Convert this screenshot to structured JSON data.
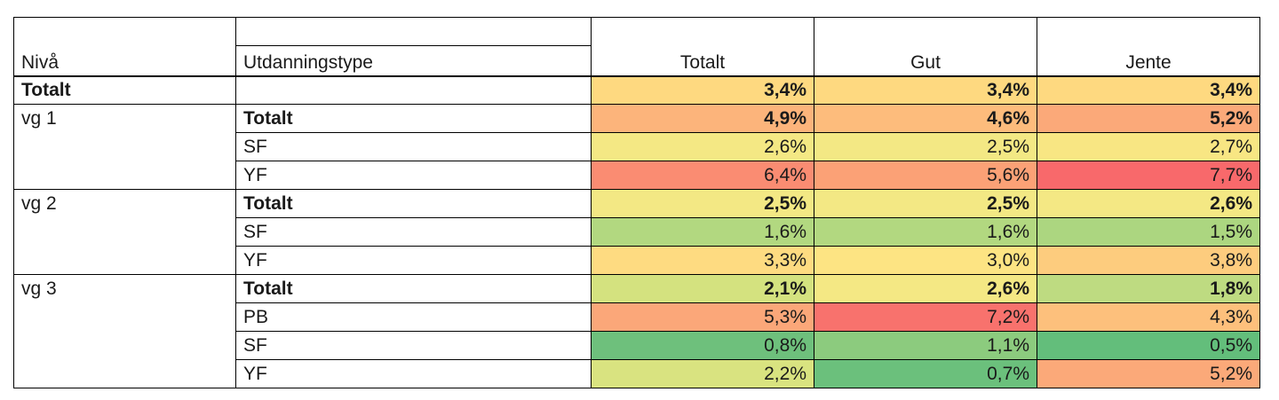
{
  "chart_data": {
    "type": "table",
    "colors": {
      "green_dark": "#63be7b",
      "green_mid": "#8ccb7e",
      "green_light": "#b2d880",
      "yellow_green": "#d4e27f",
      "yellow": "#f4e884",
      "yellow_orange": "#fed980",
      "orange_light": "#fdc47d",
      "orange": "#fcae7a",
      "orange_red": "#fb9a76",
      "red_light": "#f98370",
      "red": "#f8696b"
    },
    "headers": {
      "level": "Nivå",
      "type": "Utdanningstype",
      "totalt": "Totalt",
      "gut": "Gut",
      "jente": "Jente"
    },
    "rows": [
      {
        "level": "Totalt",
        "type": "",
        "bold_level": true,
        "bold_values": true,
        "values": [
          "3,4%",
          "3,4%",
          "3,4%"
        ],
        "colors": [
          "#fed980",
          "#fed980",
          "#fed980"
        ]
      },
      {
        "level": "vg 1",
        "type": "Totalt",
        "bold_type": true,
        "bold_values": true,
        "values": [
          "4,9%",
          "4,6%",
          "5,2%"
        ],
        "colors": [
          "#fcb47b",
          "#fdbc7c",
          "#fba979"
        ]
      },
      {
        "level": "",
        "type": "SF",
        "values": [
          "2,6%",
          "2,5%",
          "2,7%"
        ],
        "colors": [
          "#f4e884",
          "#f3e884",
          "#f8e683"
        ]
      },
      {
        "level": "",
        "type": "YF",
        "values": [
          "6,4%",
          "5,6%",
          "7,7%"
        ],
        "colors": [
          "#fa8c72",
          "#fba176",
          "#f8696b"
        ]
      },
      {
        "level": "vg 2",
        "type": "Totalt",
        "bold_type": true,
        "bold_values": true,
        "values": [
          "2,5%",
          "2,5%",
          "2,6%"
        ],
        "colors": [
          "#f3e884",
          "#f3e884",
          "#f4e884"
        ]
      },
      {
        "level": "",
        "type": "SF",
        "values": [
          "1,6%",
          "1,6%",
          "1,5%"
        ],
        "colors": [
          "#b2d880",
          "#b2d880",
          "#acd680"
        ]
      },
      {
        "level": "",
        "type": "YF",
        "values": [
          "3,3%",
          "3,0%",
          "3,8%"
        ],
        "colors": [
          "#fedb81",
          "#fde483",
          "#fdcc7e"
        ]
      },
      {
        "level": "vg 3",
        "type": "Totalt",
        "bold_type": true,
        "bold_values": true,
        "values": [
          "2,1%",
          "2,6%",
          "1,8%"
        ],
        "colors": [
          "#d4e27f",
          "#f4e884",
          "#bedb81"
        ]
      },
      {
        "level": "",
        "type": "PB",
        "values": [
          "5,3%",
          "7,2%",
          "4,3%"
        ],
        "colors": [
          "#fba779",
          "#f8726d",
          "#fdc07c"
        ]
      },
      {
        "level": "",
        "type": "SF",
        "values": [
          "0,8%",
          "1,1%",
          "0,5%"
        ],
        "colors": [
          "#6ec07c",
          "#8ccb7e",
          "#63be7b"
        ]
      },
      {
        "level": "",
        "type": "YF",
        "values": [
          "2,2%",
          "0,7%",
          "5,2%"
        ],
        "colors": [
          "#d9e380",
          "#6bc07c",
          "#fba979"
        ]
      }
    ]
  }
}
